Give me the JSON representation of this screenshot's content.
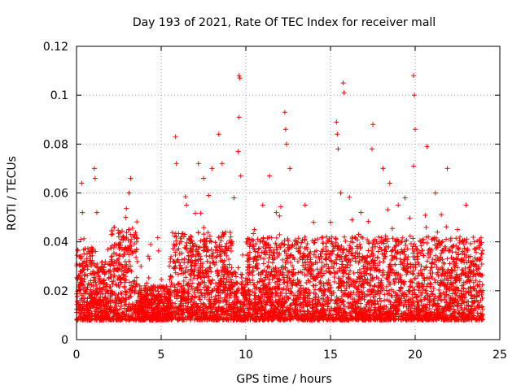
{
  "chart_data": {
    "type": "scatter",
    "title": "Day 193 of 2021, Rate Of TEC Index for receiver mall",
    "xlabel": "GPS time / hours",
    "ylabel": "ROTI / TECUs",
    "xlim": [
      0,
      25
    ],
    "ylim": [
      0,
      0.12
    ],
    "xticks": [
      0,
      5,
      10,
      15,
      20,
      25
    ],
    "xtick_labels": [
      "0",
      "5",
      "10",
      "15",
      "20",
      "25"
    ],
    "yticks": [
      0,
      0.02,
      0.04,
      0.06,
      0.08,
      0.1,
      0.12
    ],
    "ytick_labels": [
      "0",
      "0.02",
      "0.04",
      "0.06",
      "0.08",
      "0.1",
      "0.12"
    ],
    "grid": true,
    "marker": "+",
    "color": "#ff0000",
    "series": [
      {
        "name": "",
        "points": [
          [
            0.1,
            0.012
          ],
          [
            0.2,
            0.026
          ],
          [
            0.25,
            0.041
          ],
          [
            0.3,
            0.064
          ],
          [
            0.35,
            0.052
          ],
          [
            0.5,
            0.02
          ],
          [
            0.8,
            0.015
          ],
          [
            1.05,
            0.07
          ],
          [
            1.1,
            0.066
          ],
          [
            1.2,
            0.052
          ],
          [
            1.5,
            0.028
          ],
          [
            2.0,
            0.018
          ],
          [
            2.5,
            0.026
          ],
          [
            2.7,
            0.042
          ],
          [
            2.9,
            0.05
          ],
          [
            3.1,
            0.06
          ],
          [
            3.2,
            0.066
          ],
          [
            3.5,
            0.036
          ],
          [
            4.0,
            0.014
          ],
          [
            4.3,
            0.033
          ],
          [
            5.0,
            0.016
          ],
          [
            5.5,
            0.02
          ],
          [
            5.85,
            0.083
          ],
          [
            5.9,
            0.072
          ],
          [
            6.2,
            0.04
          ],
          [
            6.5,
            0.055
          ],
          [
            6.8,
            0.03
          ],
          [
            7.2,
            0.072
          ],
          [
            7.5,
            0.066
          ],
          [
            7.8,
            0.059
          ],
          [
            8.0,
            0.07
          ],
          [
            8.4,
            0.084
          ],
          [
            8.6,
            0.072
          ],
          [
            8.8,
            0.044
          ],
          [
            9.3,
            0.058
          ],
          [
            9.6,
            0.108
          ],
          [
            9.65,
            0.107
          ],
          [
            9.6,
            0.091
          ],
          [
            9.55,
            0.077
          ],
          [
            9.7,
            0.067
          ],
          [
            10.0,
            0.025
          ],
          [
            10.5,
            0.045
          ],
          [
            11.0,
            0.055
          ],
          [
            11.4,
            0.067
          ],
          [
            11.8,
            0.052
          ],
          [
            12.3,
            0.093
          ],
          [
            12.35,
            0.086
          ],
          [
            12.4,
            0.08
          ],
          [
            12.6,
            0.07
          ],
          [
            13.0,
            0.04
          ],
          [
            13.5,
            0.055
          ],
          [
            14.0,
            0.048
          ],
          [
            14.4,
            0.035
          ],
          [
            15.0,
            0.048
          ],
          [
            15.35,
            0.089
          ],
          [
            15.4,
            0.084
          ],
          [
            15.45,
            0.078
          ],
          [
            15.6,
            0.06
          ],
          [
            15.75,
            0.105
          ],
          [
            15.8,
            0.101
          ],
          [
            16.2,
            0.04
          ],
          [
            16.8,
            0.052
          ],
          [
            17.5,
            0.088
          ],
          [
            17.45,
            0.078
          ],
          [
            18.1,
            0.07
          ],
          [
            18.5,
            0.064
          ],
          [
            19.0,
            0.055
          ],
          [
            19.4,
            0.058
          ],
          [
            19.9,
            0.108
          ],
          [
            19.95,
            0.1
          ],
          [
            20.0,
            0.086
          ],
          [
            19.9,
            0.071
          ],
          [
            20.7,
            0.079
          ],
          [
            21.2,
            0.06
          ],
          [
            21.9,
            0.07
          ],
          [
            22.5,
            0.045
          ],
          [
            23.0,
            0.055
          ],
          [
            23.5,
            0.04
          ],
          [
            23.9,
            0.02
          ],
          [
            23.95,
            0.01
          ]
        ]
      }
    ]
  }
}
